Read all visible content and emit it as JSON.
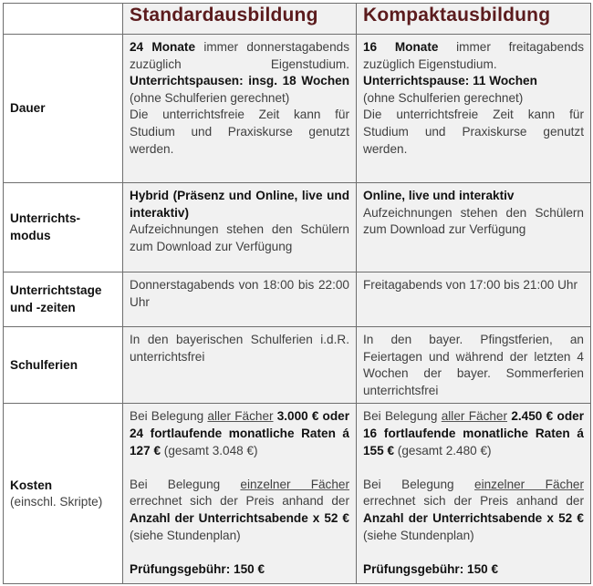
{
  "header": {
    "col_standard": "Standardausbildung",
    "col_kompakt": "Kompaktausbildung"
  },
  "colors": {
    "header_text": "#5b1b1d",
    "cell_bg": "#f1f1f1",
    "border": "#6e6e6e"
  },
  "rows": [
    {
      "label": "Dauer",
      "label_sub": "",
      "standard": [
        [
          {
            "t": "24 Monate",
            "b": true
          },
          {
            "t": " immer donnerstag­abends zuzüglich Eigenstudium. "
          },
          {
            "t": "Unterrichtspausen: insg. 18 Wo­chen",
            "b": true
          },
          {
            "t": " (ohne Schulferien gerech­net)"
          }
        ],
        [
          {
            "t": "Die unterrichtsfreie Zeit kann für Studium und Praxiskurse genutzt werden."
          }
        ]
      ],
      "kompakt": [
        [
          {
            "t": "16 Monate",
            "b": true
          },
          {
            "t": " immer freitagabends zuzüglich Eigenstudium."
          }
        ],
        [
          {
            "t": "Unterrichtspause: 11 Wochen",
            "b": true
          }
        ],
        [
          {
            "t": "(ohne Schulferien gerechnet)"
          }
        ],
        [
          {
            "t": "Die unterrichtsfreie Zeit kann für Studium und Praxiskurse genutzt werden."
          }
        ]
      ]
    },
    {
      "label": "Unterrichts­modus",
      "label_sub": "",
      "standard": [
        [
          {
            "t": "Hybrid (Präsenz und Online, live und interaktiv)",
            "b": true
          }
        ],
        [
          {
            "t": "Aufzeichnungen stehen den Schülern zum Download zur Ver­fügung"
          }
        ]
      ],
      "kompakt": [
        [
          {
            "t": "Online, live und interaktiv",
            "b": true
          }
        ],
        [
          {
            "t": "Aufzeichnungen stehen den Schülern zum Download zur Ver­fügung"
          }
        ]
      ]
    },
    {
      "label": "Unterrichtstage und -zeiten",
      "label_sub": "",
      "standard": [
        [
          {
            "t": "Donnerstagabends von 18:00 bis 22:00 Uhr"
          }
        ]
      ],
      "kompakt": [
        [
          {
            "t": "Freitagabends von 17:00 bis 21:00 Uhr"
          }
        ]
      ]
    },
    {
      "label": "Schulferien",
      "label_sub": "",
      "standard": [
        [
          {
            "t": "In den bayerischen Schulferien i.d.R. unterrichtsfrei"
          }
        ]
      ],
      "kompakt": [
        [
          {
            "t": "In den bayer. Pfingstferien, an Feiertagen und während der letz­ten 4 Wochen der bayer. Som­merferien unterrichtsfrei"
          }
        ]
      ]
    },
    {
      "label": "Kosten",
      "label_sub": "(einschl. Skripte)",
      "standard": [
        [
          {
            "t": "Bei Belegung "
          },
          {
            "t": "aller Fächer",
            "u": true
          },
          {
            "t": " "
          },
          {
            "t": "3.000 € oder 24 fortlaufende monatliche Raten á 127 €",
            "b": true
          },
          {
            "t": " (gesamt 3.048 €)"
          }
        ],
        [
          {
            "t": "Bei Belegung "
          },
          {
            "t": "einzelner Fächer",
            "u": true
          },
          {
            "t": " errechnet sich der Preis anhand der "
          },
          {
            "t": "Anzahl der Unterrichtsabende x 52 €",
            "b": true
          },
          {
            "t": " (siehe Stundenplan)"
          }
        ],
        [
          {
            "t": "Prüfungsgebühr: 150 €",
            "b": true
          }
        ]
      ],
      "kompakt": [
        [
          {
            "t": "Bei Belegung "
          },
          {
            "t": "aller Fächer",
            "u": true
          },
          {
            "t": " "
          },
          {
            "t": "2.450 € oder 16 fortlaufende monatliche Raten á 155 €",
            "b": true
          },
          {
            "t": " (gesamt 2.480 €)"
          }
        ],
        [
          {
            "t": "Bei Belegung "
          },
          {
            "t": "einzelner Fächer",
            "u": true
          },
          {
            "t": " errechnet sich der Preis anhand der "
          },
          {
            "t": "Anzahl der Unterrichtsabende x 52 €",
            "b": true
          },
          {
            "t": " (siehe Stundenplan)"
          }
        ],
        [
          {
            "t": "Prüfungsgebühr: 150 €",
            "b": true
          }
        ]
      ]
    }
  ]
}
